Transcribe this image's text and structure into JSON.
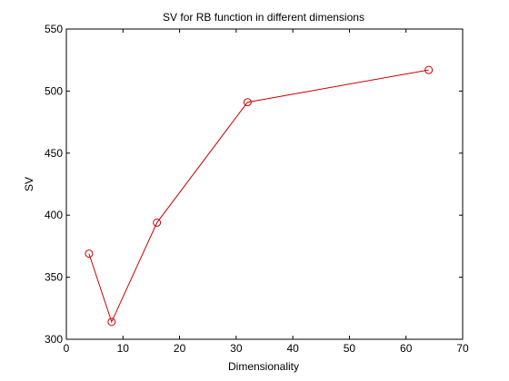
{
  "chart_data": {
    "type": "line",
    "title": "SV for RB function in different dimensions",
    "xlabel": "Dimensionality",
    "ylabel": "SV",
    "xlim": [
      0,
      70
    ],
    "ylim": [
      300,
      550
    ],
    "xticks": [
      0,
      10,
      20,
      30,
      40,
      50,
      60,
      70
    ],
    "yticks": [
      300,
      350,
      400,
      450,
      500,
      550
    ],
    "grid": false,
    "series": [
      {
        "x": [
          4,
          8,
          16,
          32,
          64
        ],
        "y": [
          369,
          314,
          394,
          491,
          517
        ],
        "color": "#cc0000",
        "marker": "circle"
      }
    ]
  }
}
